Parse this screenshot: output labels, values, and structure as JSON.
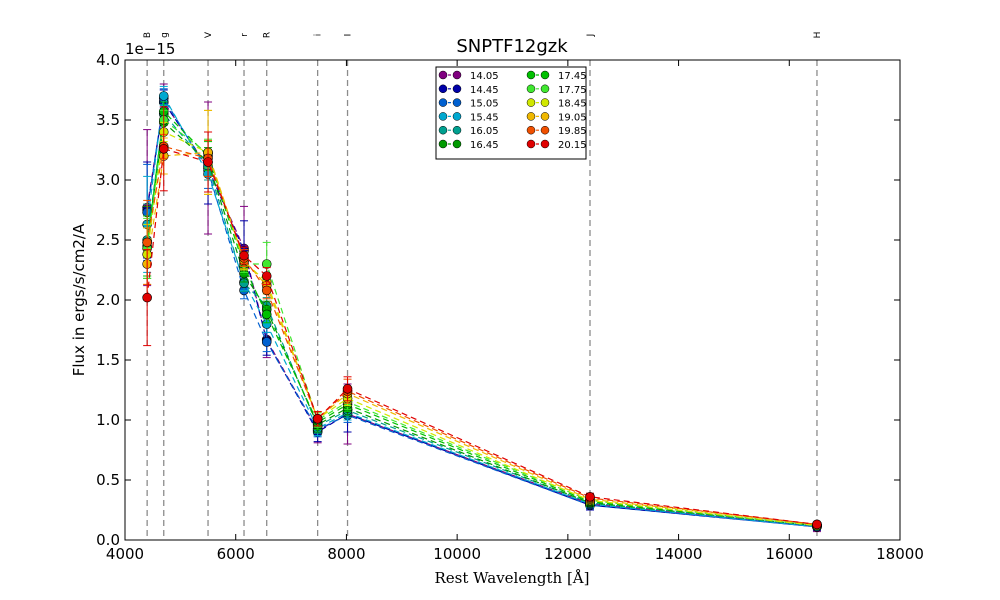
{
  "chart_data": {
    "type": "line",
    "title": "SNPTF12gzk",
    "xlabel": "Rest Wavelength [Å]",
    "ylabel": "Flux in ergs/s/cm2/A",
    "y_offset_label": "1e−15",
    "xlim": [
      4000,
      18000
    ],
    "ylim": [
      0.0,
      4.0
    ],
    "x_ticks": [
      "4000",
      "6000",
      "8000",
      "10000",
      "12000",
      "14000",
      "16000",
      "18000"
    ],
    "y_ticks": [
      "0.0",
      "0.5",
      "1.0",
      "1.5",
      "2.0",
      "2.5",
      "3.0",
      "3.5",
      "4.0"
    ],
    "grid": false,
    "legend_position": "top-center",
    "bands": [
      {
        "label": "B",
        "x": 4400
      },
      {
        "label": "g",
        "x": 4700
      },
      {
        "label": "V",
        "x": 5500
      },
      {
        "label": "r",
        "x": 6150
      },
      {
        "label": "R",
        "x": 6560
      },
      {
        "label": "i",
        "x": 7480
      },
      {
        "label": "I",
        "x": 8020
      },
      {
        "label": "J",
        "x": 12400
      },
      {
        "label": "H",
        "x": 16500
      }
    ],
    "x": [
      4400,
      4700,
      5500,
      6150,
      6560,
      7480,
      8020,
      12400,
      16500
    ],
    "series": [
      {
        "name": "14.05",
        "color": "#800080",
        "values": [
          2.77,
          3.65,
          3.1,
          2.43,
          1.67,
          0.91,
          1.05,
          0.3,
          0.11
        ],
        "errors": [
          0.65,
          0.15,
          0.55,
          0.35,
          0.15,
          0.1,
          0.25,
          0.05,
          0.04
        ]
      },
      {
        "name": "14.45",
        "color": "#0000a8",
        "values": [
          2.75,
          3.65,
          3.1,
          2.41,
          1.66,
          0.9,
          1.05,
          0.29,
          0.11
        ],
        "errors": [
          0.4,
          0.1,
          0.3,
          0.25,
          0.12,
          0.08,
          0.15,
          0.04,
          0.03
        ]
      },
      {
        "name": "15.05",
        "color": "#0060d0",
        "values": [
          2.73,
          3.68,
          3.08,
          2.08,
          1.65,
          0.92,
          1.04,
          0.29,
          0.11
        ],
        "errors": [
          0.4,
          0.08,
          0.15,
          0.07,
          0.08,
          0.06,
          0.06,
          0.03,
          0.02
        ]
      },
      {
        "name": "15.45",
        "color": "#00a8d0",
        "values": [
          2.63,
          3.7,
          3.05,
          2.15,
          1.8,
          0.93,
          1.06,
          0.3,
          0.11
        ],
        "errors": [
          0.4,
          0.08,
          0.15,
          0.07,
          0.07,
          0.06,
          0.06,
          0.03,
          0.02
        ]
      },
      {
        "name": "16.05",
        "color": "#00a090",
        "values": [
          2.5,
          3.55,
          3.12,
          2.14,
          1.95,
          0.95,
          1.08,
          0.31,
          0.12
        ],
        "errors": [
          0.3,
          0.08,
          0.12,
          0.07,
          0.07,
          0.06,
          0.06,
          0.03,
          0.02
        ]
      },
      {
        "name": "16.45",
        "color": "#009a00",
        "values": [
          2.48,
          3.48,
          3.15,
          2.22,
          1.92,
          0.96,
          1.1,
          0.31,
          0.12
        ],
        "errors": [
          0.3,
          0.08,
          0.12,
          0.07,
          0.07,
          0.06,
          0.06,
          0.03,
          0.02
        ]
      },
      {
        "name": "17.45",
        "color": "#00c000",
        "values": [
          2.45,
          3.57,
          3.2,
          2.28,
          1.88,
          0.98,
          1.13,
          0.32,
          0.12
        ],
        "errors": [
          0.25,
          0.08,
          0.12,
          0.07,
          0.07,
          0.06,
          0.06,
          0.03,
          0.02
        ]
      },
      {
        "name": "17.75",
        "color": "#40e830",
        "values": [
          2.43,
          3.5,
          3.22,
          2.3,
          2.3,
          1.0,
          1.15,
          0.33,
          0.12
        ],
        "errors": [
          0.25,
          0.08,
          0.12,
          0.07,
          0.18,
          0.06,
          0.06,
          0.03,
          0.02
        ]
      },
      {
        "name": "18.45",
        "color": "#d0e800",
        "values": [
          2.38,
          3.4,
          3.23,
          2.32,
          2.15,
          1.01,
          1.18,
          0.33,
          0.12
        ],
        "errors": [
          0.25,
          0.08,
          0.35,
          0.07,
          0.07,
          0.06,
          0.06,
          0.03,
          0.02
        ]
      },
      {
        "name": "19.05",
        "color": "#f0b800",
        "values": [
          2.3,
          3.2,
          3.23,
          2.33,
          2.12,
          1.01,
          1.22,
          0.34,
          0.13
        ],
        "errors": [
          0.3,
          0.15,
          0.35,
          0.07,
          0.07,
          0.06,
          0.06,
          0.03,
          0.02
        ]
      },
      {
        "name": "19.85",
        "color": "#f05000",
        "values": [
          2.48,
          3.28,
          3.18,
          2.35,
          2.08,
          1.01,
          1.24,
          0.35,
          0.13
        ],
        "errors": [
          0.35,
          0.1,
          0.15,
          0.07,
          0.07,
          0.06,
          0.1,
          0.03,
          0.02
        ]
      },
      {
        "name": "20.15",
        "color": "#e00000",
        "values": [
          2.02,
          3.26,
          3.15,
          2.37,
          2.2,
          1.01,
          1.26,
          0.36,
          0.13
        ],
        "errors": [
          0.4,
          0.35,
          0.25,
          0.07,
          0.07,
          0.06,
          0.1,
          0.03,
          0.02
        ]
      }
    ]
  }
}
